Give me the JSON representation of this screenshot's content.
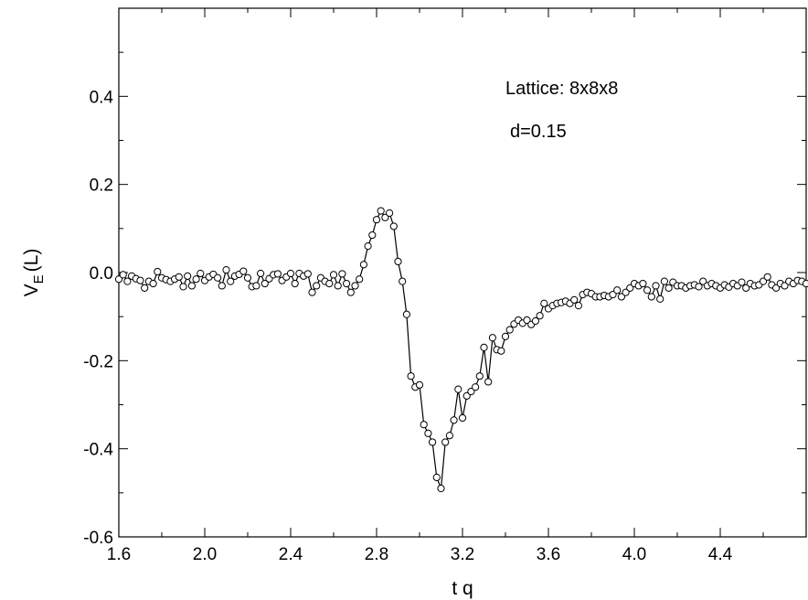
{
  "chart_data": {
    "type": "line",
    "title": "",
    "xlabel": "t q",
    "ylabel_main": "V",
    "ylabel_sub": "E",
    "ylabel_tail": "(L)",
    "xlim": [
      1.6,
      4.8
    ],
    "ylim": [
      -0.6,
      0.6
    ],
    "x_ticks": [
      1.6,
      2.0,
      2.4,
      2.8,
      3.2,
      3.6,
      4.0,
      4.4
    ],
    "x_tick_labels": [
      "1.6",
      "2.0",
      "2.4",
      "2.8",
      "3.2",
      "3.6",
      "4.0",
      "4.4"
    ],
    "y_ticks": [
      -0.6,
      -0.4,
      -0.2,
      0.0,
      0.2,
      0.4
    ],
    "y_tick_labels": [
      "-0.6",
      "-0.4",
      "-0.2",
      "0.0",
      "0.2",
      "0.4"
    ],
    "grid": false,
    "marker": "open-circle",
    "line_color": "#000000",
    "annotations": [
      "Lattice: 8x8x8",
      "d=0.15"
    ],
    "series": [
      {
        "name": "",
        "points": [
          [
            1.6,
            -0.015
          ],
          [
            1.62,
            -0.005
          ],
          [
            1.64,
            -0.02
          ],
          [
            1.66,
            -0.008
          ],
          [
            1.68,
            -0.014
          ],
          [
            1.7,
            -0.018
          ],
          [
            1.72,
            -0.035
          ],
          [
            1.74,
            -0.02
          ],
          [
            1.76,
            -0.025
          ],
          [
            1.78,
            0.002
          ],
          [
            1.8,
            -0.012
          ],
          [
            1.82,
            -0.016
          ],
          [
            1.84,
            -0.02
          ],
          [
            1.86,
            -0.015
          ],
          [
            1.88,
            -0.01
          ],
          [
            1.9,
            -0.032
          ],
          [
            1.92,
            -0.008
          ],
          [
            1.94,
            -0.03
          ],
          [
            1.96,
            -0.015
          ],
          [
            1.98,
            -0.002
          ],
          [
            2.0,
            -0.018
          ],
          [
            2.02,
            -0.01
          ],
          [
            2.04,
            -0.004
          ],
          [
            2.06,
            -0.012
          ],
          [
            2.08,
            -0.03
          ],
          [
            2.1,
            0.006
          ],
          [
            2.12,
            -0.02
          ],
          [
            2.14,
            -0.008
          ],
          [
            2.16,
            -0.004
          ],
          [
            2.18,
            0.003
          ],
          [
            2.2,
            -0.012
          ],
          [
            2.22,
            -0.032
          ],
          [
            2.24,
            -0.03
          ],
          [
            2.26,
            -0.002
          ],
          [
            2.28,
            -0.025
          ],
          [
            2.3,
            -0.014
          ],
          [
            2.32,
            -0.005
          ],
          [
            2.34,
            -0.003
          ],
          [
            2.36,
            -0.018
          ],
          [
            2.38,
            -0.01
          ],
          [
            2.4,
            -0.002
          ],
          [
            2.42,
            -0.025
          ],
          [
            2.44,
            -0.002
          ],
          [
            2.46,
            -0.008
          ],
          [
            2.48,
            -0.003
          ],
          [
            2.5,
            -0.045
          ],
          [
            2.52,
            -0.03
          ],
          [
            2.54,
            -0.012
          ],
          [
            2.56,
            -0.02
          ],
          [
            2.58,
            -0.025
          ],
          [
            2.6,
            -0.005
          ],
          [
            2.62,
            -0.03
          ],
          [
            2.64,
            -0.003
          ],
          [
            2.66,
            -0.025
          ],
          [
            2.68,
            -0.045
          ],
          [
            2.7,
            -0.03
          ],
          [
            2.72,
            -0.015
          ],
          [
            2.74,
            0.018
          ],
          [
            2.76,
            0.06
          ],
          [
            2.78,
            0.085
          ],
          [
            2.8,
            0.12
          ],
          [
            2.82,
            0.14
          ],
          [
            2.84,
            0.125
          ],
          [
            2.86,
            0.135
          ],
          [
            2.88,
            0.105
          ],
          [
            2.9,
            0.025
          ],
          [
            2.92,
            -0.02
          ],
          [
            2.94,
            -0.095
          ],
          [
            2.96,
            -0.235
          ],
          [
            2.98,
            -0.26
          ],
          [
            3.0,
            -0.255
          ],
          [
            3.02,
            -0.345
          ],
          [
            3.04,
            -0.365
          ],
          [
            3.06,
            -0.385
          ],
          [
            3.08,
            -0.465
          ],
          [
            3.1,
            -0.49
          ],
          [
            3.12,
            -0.385
          ],
          [
            3.14,
            -0.37
          ],
          [
            3.16,
            -0.335
          ],
          [
            3.18,
            -0.265
          ],
          [
            3.2,
            -0.33
          ],
          [
            3.22,
            -0.28
          ],
          [
            3.24,
            -0.27
          ],
          [
            3.26,
            -0.26
          ],
          [
            3.28,
            -0.235
          ],
          [
            3.3,
            -0.17
          ],
          [
            3.32,
            -0.248
          ],
          [
            3.34,
            -0.148
          ],
          [
            3.36,
            -0.175
          ],
          [
            3.38,
            -0.178
          ],
          [
            3.4,
            -0.145
          ],
          [
            3.42,
            -0.13
          ],
          [
            3.44,
            -0.117
          ],
          [
            3.46,
            -0.108
          ],
          [
            3.48,
            -0.115
          ],
          [
            3.5,
            -0.108
          ],
          [
            3.52,
            -0.118
          ],
          [
            3.54,
            -0.11
          ],
          [
            3.56,
            -0.098
          ],
          [
            3.58,
            -0.07
          ],
          [
            3.6,
            -0.082
          ],
          [
            3.62,
            -0.075
          ],
          [
            3.64,
            -0.07
          ],
          [
            3.66,
            -0.068
          ],
          [
            3.68,
            -0.065
          ],
          [
            3.7,
            -0.07
          ],
          [
            3.72,
            -0.062
          ],
          [
            3.74,
            -0.075
          ],
          [
            3.76,
            -0.05
          ],
          [
            3.78,
            -0.045
          ],
          [
            3.8,
            -0.048
          ],
          [
            3.82,
            -0.055
          ],
          [
            3.84,
            -0.055
          ],
          [
            3.86,
            -0.052
          ],
          [
            3.88,
            -0.055
          ],
          [
            3.9,
            -0.05
          ],
          [
            3.92,
            -0.04
          ],
          [
            3.94,
            -0.055
          ],
          [
            3.96,
            -0.045
          ],
          [
            3.98,
            -0.035
          ],
          [
            4.0,
            -0.025
          ],
          [
            4.02,
            -0.03
          ],
          [
            4.04,
            -0.025
          ],
          [
            4.06,
            -0.04
          ],
          [
            4.08,
            -0.055
          ],
          [
            4.1,
            -0.03
          ],
          [
            4.12,
            -0.06
          ],
          [
            4.14,
            -0.02
          ],
          [
            4.16,
            -0.035
          ],
          [
            4.18,
            -0.022
          ],
          [
            4.2,
            -0.03
          ],
          [
            4.22,
            -0.03
          ],
          [
            4.24,
            -0.035
          ],
          [
            4.26,
            -0.03
          ],
          [
            4.28,
            -0.028
          ],
          [
            4.3,
            -0.032
          ],
          [
            4.32,
            -0.02
          ],
          [
            4.34,
            -0.03
          ],
          [
            4.36,
            -0.025
          ],
          [
            4.38,
            -0.03
          ],
          [
            4.4,
            -0.035
          ],
          [
            4.42,
            -0.028
          ],
          [
            4.44,
            -0.033
          ],
          [
            4.46,
            -0.025
          ],
          [
            4.48,
            -0.03
          ],
          [
            4.5,
            -0.022
          ],
          [
            4.52,
            -0.035
          ],
          [
            4.54,
            -0.025
          ],
          [
            4.56,
            -0.03
          ],
          [
            4.58,
            -0.028
          ],
          [
            4.6,
            -0.02
          ],
          [
            4.62,
            -0.01
          ],
          [
            4.64,
            -0.028
          ],
          [
            4.66,
            -0.035
          ],
          [
            4.68,
            -0.025
          ],
          [
            4.7,
            -0.03
          ],
          [
            4.72,
            -0.02
          ],
          [
            4.74,
            -0.025
          ],
          [
            4.76,
            -0.018
          ],
          [
            4.78,
            -0.02
          ],
          [
            4.8,
            -0.025
          ]
        ]
      }
    ]
  }
}
